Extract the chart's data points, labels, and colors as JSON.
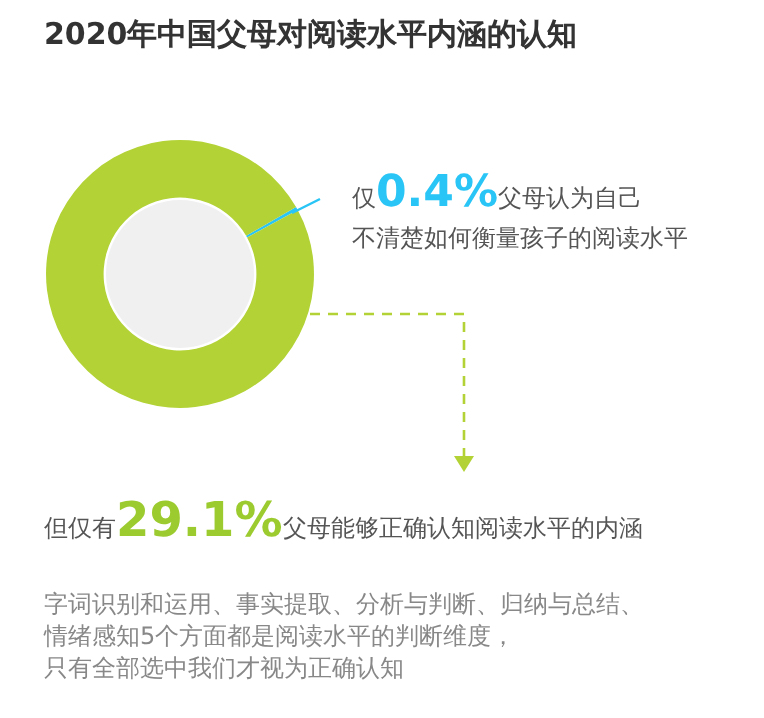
{
  "chart_data": {
    "type": "donut",
    "title": "2020年中国父母对阅读水平内涵的认知",
    "categories": [
      null,
      null
    ],
    "values": [
      0.4,
      99.6
    ],
    "colors": [
      "#29c5f6",
      "#b2d235"
    ],
    "annotations": [
      "仅0.4%父母认为自己",
      "不清楚如何衡量孩子的阅读水平",
      "但仅有29.1%父母能够正确认知阅读水平的内涵",
      "字词识别和运用、事实提取、分析与判断、归纳与总结、",
      "情绪感知5个方面都是阅读水平的判断维度，",
      "只有全部选中我们才视为正确认知"
    ],
    "legend": false
  }
}
